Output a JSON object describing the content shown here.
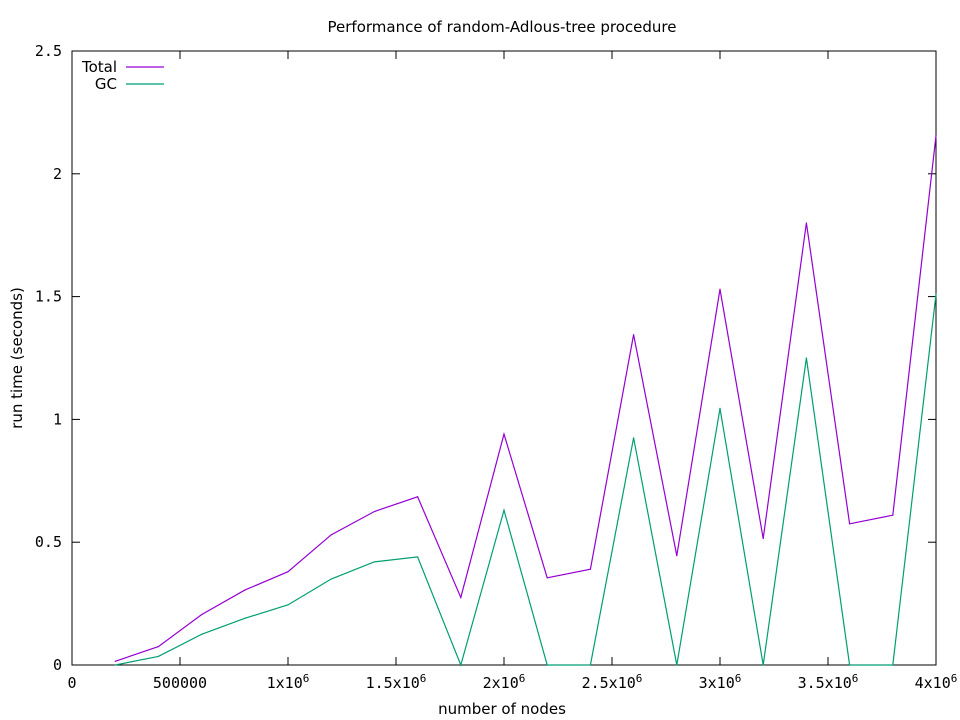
{
  "chart_data": {
    "type": "line",
    "title": "Performance of random-Adlous-tree procedure",
    "xlabel": "number of nodes",
    "ylabel": "run time (seconds)",
    "xlim": [
      0,
      4000000
    ],
    "ylim": [
      0,
      2.5
    ],
    "grid": false,
    "legend_position": "top-left",
    "x_ticks": [
      {
        "value": 0,
        "base": "0",
        "sup": ""
      },
      {
        "value": 500000,
        "base": "500000",
        "sup": ""
      },
      {
        "value": 1000000,
        "base": "1x10",
        "sup": "6"
      },
      {
        "value": 1500000,
        "base": "1.5x10",
        "sup": "6"
      },
      {
        "value": 2000000,
        "base": "2x10",
        "sup": "6"
      },
      {
        "value": 2500000,
        "base": "2.5x10",
        "sup": "6"
      },
      {
        "value": 3000000,
        "base": "3x10",
        "sup": "6"
      },
      {
        "value": 3500000,
        "base": "3.5x10",
        "sup": "6"
      },
      {
        "value": 4000000,
        "base": "4x10",
        "sup": "6"
      }
    ],
    "y_ticks": [
      {
        "value": 0,
        "label": "0"
      },
      {
        "value": 0.5,
        "label": "0.5"
      },
      {
        "value": 1,
        "label": "1"
      },
      {
        "value": 1.5,
        "label": "1.5"
      },
      {
        "value": 2,
        "label": "2"
      },
      {
        "value": 2.5,
        "label": "2.5"
      }
    ],
    "x": [
      200000,
      400000,
      600000,
      800000,
      1000000,
      1200000,
      1400000,
      1600000,
      1800000,
      2000000,
      2200000,
      2400000,
      2600000,
      2800000,
      3000000,
      3200000,
      3400000,
      3600000,
      3800000,
      4000000
    ],
    "series": [
      {
        "name": "Total",
        "color": "#9400d3",
        "values": [
          0.015,
          0.075,
          0.205,
          0.305,
          0.38,
          0.53,
          0.625,
          0.685,
          0.275,
          0.94,
          0.355,
          0.39,
          1.345,
          0.445,
          1.53,
          0.515,
          1.8,
          0.575,
          0.61,
          2.155
        ]
      },
      {
        "name": "GC",
        "color": "#009e73",
        "values": [
          0.0,
          0.035,
          0.125,
          0.19,
          0.245,
          0.35,
          0.42,
          0.44,
          0.0,
          0.63,
          0.0,
          0.0,
          0.925,
          0.0,
          1.045,
          0.0,
          1.25,
          0.0,
          0.0,
          1.51
        ]
      }
    ]
  }
}
